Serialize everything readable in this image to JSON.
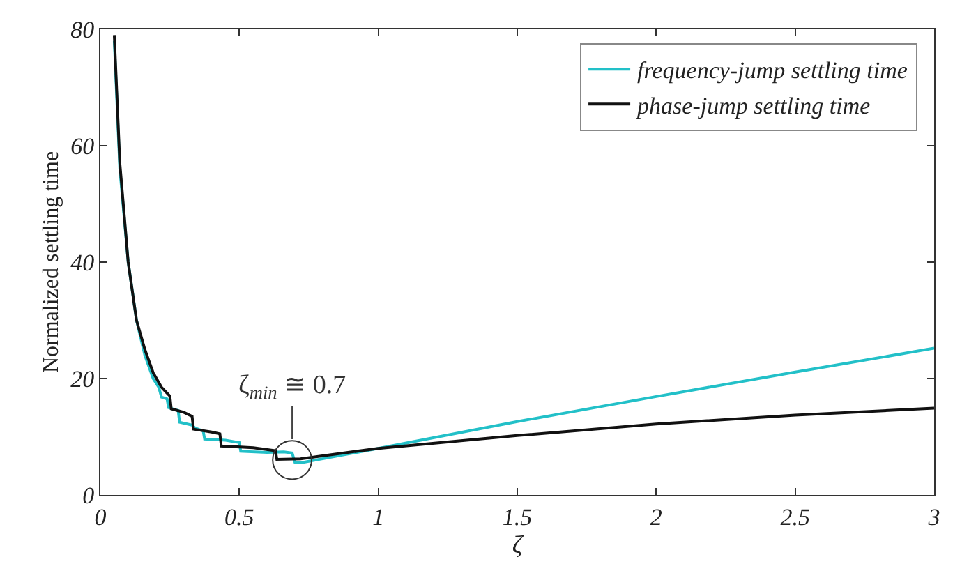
{
  "chart_data": {
    "type": "line",
    "xlabel": "ζ",
    "ylabel": "Normalized settling time",
    "xlim": [
      0,
      3
    ],
    "ylim": [
      0,
      80
    ],
    "xticks": [
      0,
      0.5,
      1,
      1.5,
      2,
      2.5,
      3
    ],
    "yticks": [
      0,
      20,
      40,
      60,
      80
    ],
    "grid": false,
    "legend": "top right",
    "marker": "none",
    "line_style": "solid",
    "series": [
      {
        "name": "frequency-jump settling time",
        "color": "#22c0c8",
        "x": [
          0.05,
          0.07,
          0.1,
          0.13,
          0.16,
          0.19,
          0.21,
          0.22,
          0.24,
          0.245,
          0.28,
          0.285,
          0.33,
          0.34,
          0.37,
          0.375,
          0.45,
          0.5,
          0.505,
          0.6,
          0.66,
          0.69,
          0.7,
          0.72,
          1,
          1.5,
          2,
          2.5,
          3
        ],
        "values": [
          78,
          56,
          40,
          30,
          24,
          20,
          18.5,
          16.8,
          16.5,
          15,
          14.5,
          12.5,
          12,
          11.5,
          11,
          9.6,
          9.4,
          9,
          7.5,
          7.3,
          7.4,
          7.2,
          5.6,
          5.5,
          8,
          12.6,
          16.9,
          21.1,
          25.2
        ]
      },
      {
        "name": "phase-jump settling time",
        "color": "#111111",
        "x": [
          0.05,
          0.07,
          0.1,
          0.13,
          0.16,
          0.19,
          0.22,
          0.25,
          0.255,
          0.3,
          0.33,
          0.335,
          0.4,
          0.43,
          0.435,
          0.55,
          0.63,
          0.635,
          0.72,
          1,
          1.5,
          2,
          2.5,
          3
        ],
        "values": [
          79,
          57,
          40,
          30,
          25,
          21,
          18.5,
          17,
          14.8,
          14.2,
          13.5,
          11.3,
          10.8,
          10.5,
          8.4,
          8.1,
          7.6,
          6.1,
          6.2,
          8,
          10.2,
          12.2,
          13.7,
          14.9
        ]
      }
    ],
    "annotations": [
      {
        "text": "ζ$_{min}$ ≅ 0.7",
        "x": 0.69,
        "y": 6
      }
    ]
  }
}
